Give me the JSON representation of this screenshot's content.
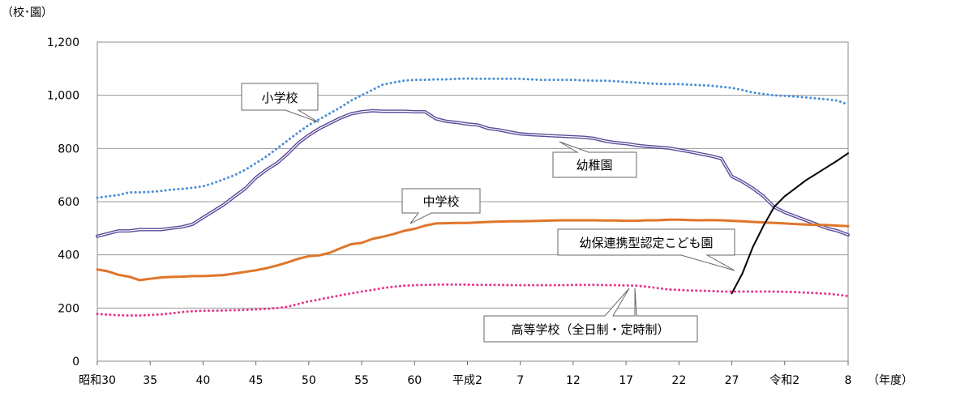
{
  "chart_data": {
    "type": "line",
    "y_unit": "（校･園）",
    "x_unit": "（年度）",
    "yticks": [
      "0",
      "200",
      "400",
      "600",
      "800",
      "1,000",
      "1,200"
    ],
    "ylim": [
      0,
      1200
    ],
    "xticks": [
      {
        "i": 0,
        "label": "昭和30"
      },
      {
        "i": 5,
        "label": "35"
      },
      {
        "i": 10,
        "label": "40"
      },
      {
        "i": 15,
        "label": "45"
      },
      {
        "i": 20,
        "label": "50"
      },
      {
        "i": 25,
        "label": "55"
      },
      {
        "i": 30,
        "label": "60"
      },
      {
        "i": 35,
        "label": "平成2"
      },
      {
        "i": 40,
        "label": "7"
      },
      {
        "i": 45,
        "label": "12"
      },
      {
        "i": 50,
        "label": "17"
      },
      {
        "i": 55,
        "label": "22"
      },
      {
        "i": 60,
        "label": "27"
      },
      {
        "i": 65,
        "label": "令和2"
      },
      {
        "i": 71,
        "label": "8"
      }
    ],
    "grid": true,
    "series": [
      {
        "name": "小学校",
        "color": "#4a8fd6",
        "style": "dotted",
        "start": 0,
        "values": [
          615,
          620,
          625,
          635,
          635,
          637,
          640,
          645,
          648,
          652,
          658,
          670,
          685,
          700,
          720,
          745,
          770,
          800,
          830,
          860,
          888,
          910,
          932,
          955,
          980,
          1000,
          1020,
          1040,
          1048,
          1055,
          1058,
          1058,
          1060,
          1060,
          1062,
          1063,
          1062,
          1062,
          1062,
          1062,
          1062,
          1060,
          1058,
          1058,
          1058,
          1058,
          1056,
          1055,
          1055,
          1053,
          1050,
          1048,
          1045,
          1043,
          1042,
          1042,
          1040,
          1038,
          1036,
          1032,
          1028,
          1020,
          1010,
          1005,
          1000,
          998,
          995,
          992,
          988,
          985,
          980,
          965
        ]
      },
      {
        "name": "幼稚園",
        "color": "#5b4a99",
        "style": "double",
        "start": 0,
        "values": [
          470,
          480,
          490,
          490,
          495,
          495,
          495,
          500,
          505,
          515,
          540,
          565,
          590,
          620,
          650,
          690,
          720,
          745,
          780,
          820,
          850,
          875,
          895,
          915,
          930,
          938,
          942,
          940,
          940,
          940,
          938,
          938,
          912,
          902,
          898,
          892,
          888,
          875,
          870,
          862,
          855,
          852,
          850,
          848,
          846,
          844,
          842,
          838,
          828,
          822,
          818,
          812,
          808,
          805,
          802,
          795,
          788,
          780,
          772,
          762,
          695,
          675,
          650,
          620,
          580,
          560,
          545,
          530,
          515,
          500,
          490,
          475
        ]
      },
      {
        "name": "中学校",
        "color": "#e0752a",
        "style": "solid",
        "start": 0,
        "values": [
          345,
          338,
          325,
          318,
          305,
          310,
          315,
          317,
          318,
          320,
          320,
          322,
          324,
          330,
          336,
          342,
          350,
          360,
          372,
          385,
          395,
          398,
          408,
          425,
          440,
          445,
          460,
          468,
          478,
          490,
          498,
          510,
          518,
          519,
          520,
          520,
          522,
          524,
          525,
          526,
          526,
          527,
          528,
          529,
          530,
          530,
          530,
          530,
          529,
          529,
          528,
          528,
          530,
          530,
          532,
          532,
          531,
          530,
          531,
          530,
          528,
          526,
          524,
          522,
          520,
          518,
          516,
          514,
          513,
          512,
          510,
          508
        ]
      },
      {
        "name": "高等学校（全日制・定時制）",
        "color": "#e8388a",
        "style": "dotted",
        "start": 0,
        "values": [
          178,
          175,
          173,
          172,
          172,
          174,
          176,
          180,
          185,
          188,
          190,
          190,
          191,
          192,
          193,
          195,
          197,
          200,
          205,
          215,
          225,
          232,
          240,
          248,
          255,
          262,
          268,
          275,
          280,
          284,
          286,
          287,
          288,
          288,
          288,
          288,
          287,
          287,
          287,
          286,
          286,
          286,
          286,
          286,
          286,
          287,
          287,
          287,
          286,
          286,
          285,
          284,
          280,
          275,
          270,
          268,
          266,
          265,
          264,
          262,
          262,
          262,
          262,
          262,
          262,
          261,
          260,
          258,
          256,
          254,
          250,
          245
        ]
      },
      {
        "name": "幼保連携型認定こども園",
        "color": "#000000",
        "style": "solid",
        "start": 60,
        "values": [
          255,
          330,
          430,
          510,
          580,
          620,
          650,
          680,
          705,
          730,
          755,
          782
        ]
      }
    ],
    "callouts": [
      {
        "text": "小学校"
      },
      {
        "text": "幼稚園"
      },
      {
        "text": "中学校"
      },
      {
        "text": "幼保連携型認定こども園"
      },
      {
        "text": "高等学校（全日制・定時制）"
      }
    ]
  }
}
